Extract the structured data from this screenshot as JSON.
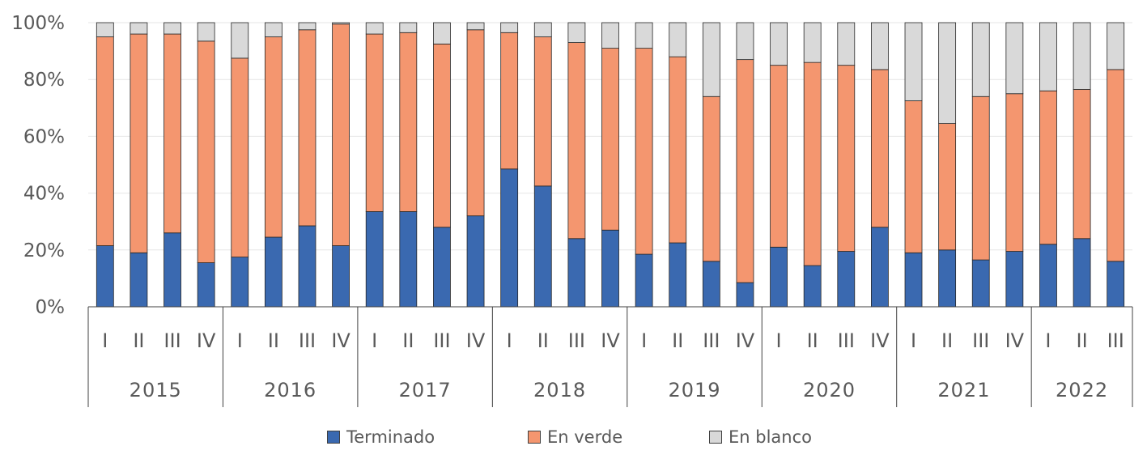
{
  "chart_data": {
    "type": "bar",
    "stacked": true,
    "normalized": true,
    "title": "",
    "xlabel": "",
    "ylabel": "",
    "ylim": [
      0,
      100
    ],
    "y_ticks": [
      "0%",
      "20%",
      "40%",
      "60%",
      "80%",
      "100%"
    ],
    "y_tick_values": [
      0,
      20,
      40,
      60,
      80,
      100
    ],
    "quarters": [
      "I",
      "II",
      "III",
      "IV",
      "I",
      "II",
      "III",
      "IV",
      "I",
      "II",
      "III",
      "IV",
      "I",
      "II",
      "III",
      "IV",
      "I",
      "II",
      "III",
      "IV",
      "I",
      "II",
      "III",
      "IV",
      "I",
      "II",
      "III",
      "IV",
      "I",
      "II",
      "III"
    ],
    "years": [
      {
        "label": "2015",
        "count": 4
      },
      {
        "label": "2016",
        "count": 4
      },
      {
        "label": "2017",
        "count": 4
      },
      {
        "label": "2018",
        "count": 4
      },
      {
        "label": "2019",
        "count": 4
      },
      {
        "label": "2020",
        "count": 4
      },
      {
        "label": "2021",
        "count": 4
      },
      {
        "label": "2022",
        "count": 3
      }
    ],
    "series": [
      {
        "name": "Terminado",
        "color": "#3a69b0",
        "values": [
          21.5,
          19,
          26,
          15.5,
          17.5,
          24.5,
          28.5,
          21.5,
          33.5,
          33.5,
          28,
          32,
          48.5,
          42.5,
          24,
          27,
          18.5,
          22.5,
          16,
          8.5,
          21,
          14.5,
          19.5,
          28,
          19,
          20,
          16.5,
          19.5,
          22,
          24,
          16
        ]
      },
      {
        "name": "En verde",
        "color": "#f4966f",
        "values": [
          73.5,
          77,
          70,
          78,
          70,
          70.5,
          69,
          78,
          62.5,
          63,
          64.5,
          65.5,
          48,
          52.5,
          69,
          64,
          72.5,
          65.5,
          58,
          78.5,
          64,
          71.5,
          65.5,
          55.5,
          53.5,
          44.5,
          57.5,
          55.5,
          54,
          52.5,
          67.5
        ]
      },
      {
        "name": "En blanco",
        "color": "#d9d9d9",
        "values": [
          5,
          4,
          4,
          6.5,
          12.5,
          5,
          2.5,
          0.5,
          4,
          3.5,
          7.5,
          2.5,
          3.5,
          5,
          7,
          9,
          9,
          12,
          26,
          13,
          15,
          14,
          15,
          16.5,
          27.5,
          35.5,
          26,
          25,
          24,
          23.5,
          16.5
        ]
      }
    ],
    "legend": [
      "Terminado",
      "En verde",
      "En blanco"
    ],
    "legend_position": "bottom"
  }
}
